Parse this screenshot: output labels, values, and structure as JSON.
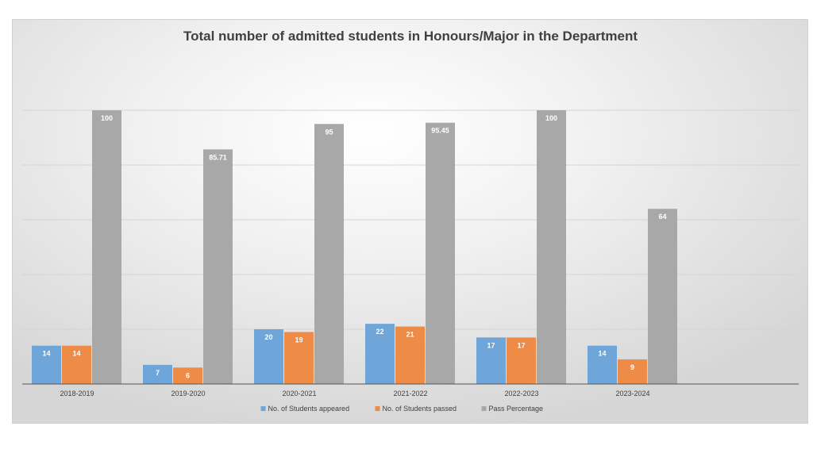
{
  "chart_data": {
    "type": "bar",
    "title": "Total number of admitted students in Honours/Major in the Department",
    "xlabel": "",
    "ylabel": "",
    "categories": [
      "2018-2019",
      "2019-2020",
      "2020-2021",
      "2021-2022",
      "2022-2023",
      "2023-2024"
    ],
    "series": [
      {
        "name": "No. of Students appeared",
        "color": "#6FA6D9",
        "values": [
          14,
          7,
          20,
          22,
          17,
          14
        ],
        "labels": [
          "14",
          "7",
          "20",
          "22",
          "17",
          "14"
        ]
      },
      {
        "name": "No. of Students passed",
        "color": "#EE8B46",
        "values": [
          14,
          6,
          19,
          21,
          17,
          9
        ],
        "labels": [
          "14",
          "6",
          "19",
          "21",
          "17",
          "9"
        ]
      },
      {
        "name": "Pass Percentage",
        "color": "#A8A8A8",
        "values": [
          100,
          85.71,
          95,
          95.45,
          100,
          64
        ],
        "labels": [
          "100",
          "85.71",
          "95",
          "95.45",
          "100",
          "64"
        ]
      }
    ],
    "ylim": [
      0,
      100
    ],
    "grid": true,
    "legend_position": "bottom"
  }
}
